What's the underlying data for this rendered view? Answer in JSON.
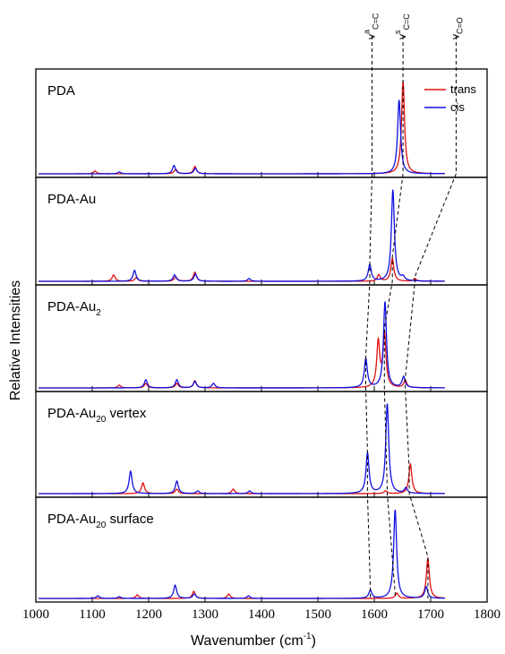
{
  "colors": {
    "trans": "#e01010",
    "cis": "#1010e0",
    "axis": "#000000",
    "guide": "#000000"
  },
  "chart_data": {
    "type": "line",
    "xlabel_main": "Wavenumber (cm",
    "xlabel_sup": "-1",
    "xlabel_end": ")",
    "ylabel": "Relative Intensities",
    "xlim": [
      1000,
      1800
    ],
    "xticks": [
      1000,
      1100,
      1200,
      1300,
      1400,
      1500,
      1600,
      1700,
      1800
    ],
    "xtick_labels": [
      "1000",
      "1100",
      "1200",
      "1300",
      "1400",
      "1500",
      "1600",
      "1700",
      "1800"
    ],
    "legend": {
      "position": "top-right",
      "entries": [
        "trans",
        "cis"
      ]
    },
    "annotations": [
      {
        "base": "v",
        "sup": "a",
        "sub": "C=C"
      },
      {
        "base": "v",
        "sup": "s",
        "sub": "C=C"
      },
      {
        "base": "v",
        "sup": "",
        "sub": "C=O"
      }
    ],
    "panels": [
      {
        "name": "PDA",
        "label_main": "PDA",
        "label_sub": "",
        "label_tail": "",
        "series": [
          {
            "name": "trans",
            "peaks": [
              [
                1105,
                0.03
              ],
              [
                1248,
                0.05
              ],
              [
                1282,
                0.08
              ],
              [
                1651,
                1.0
              ],
              [
                1747,
                0.04
              ]
            ]
          },
          {
            "name": "cis",
            "peaks": [
              [
                1148,
                0.02
              ],
              [
                1245,
                0.09
              ],
              [
                1283,
                0.06
              ],
              [
                1644,
                0.8
              ],
              [
                1740,
                0.08
              ]
            ]
          }
        ]
      },
      {
        "name": "PDA-Au",
        "label_main": "PDA-Au",
        "label_sub": "",
        "label_tail": "",
        "series": [
          {
            "name": "trans",
            "peaks": [
              [
                1138,
                0.07
              ],
              [
                1178,
                0.04
              ],
              [
                1248,
                0.05
              ],
              [
                1282,
                0.1
              ],
              [
                1608,
                0.07
              ],
              [
                1632,
                0.25
              ],
              [
                1672,
                0.03
              ]
            ]
          },
          {
            "name": "cis",
            "peaks": [
              [
                1175,
                0.12
              ],
              [
                1246,
                0.07
              ],
              [
                1283,
                0.08
              ],
              [
                1378,
                0.03
              ],
              [
                1592,
                0.18
              ],
              [
                1633,
                1.0
              ],
              [
                1651,
                0.04
              ]
            ]
          }
        ]
      },
      {
        "name": "PDA-Au2",
        "label_main": "PDA-Au",
        "label_sub": "2",
        "label_tail": "",
        "series": [
          {
            "name": "trans",
            "peaks": [
              [
                1148,
                0.03
              ],
              [
                1195,
                0.05
              ],
              [
                1250,
                0.05
              ],
              [
                1282,
                0.08
              ],
              [
                1607,
                0.5
              ],
              [
                1618,
                0.6
              ],
              [
                1655,
                0.08
              ]
            ]
          },
          {
            "name": "cis",
            "peaks": [
              [
                1195,
                0.09
              ],
              [
                1250,
                0.09
              ],
              [
                1282,
                0.07
              ],
              [
                1315,
                0.05
              ],
              [
                1585,
                0.32
              ],
              [
                1619,
                0.95
              ],
              [
                1652,
                0.12
              ]
            ]
          }
        ]
      },
      {
        "name": "PDA-Au20 vertex",
        "label_main": "PDA-Au",
        "label_sub": "20",
        "label_tail": " vertex",
        "series": [
          {
            "name": "trans",
            "peaks": [
              [
                1190,
                0.12
              ],
              [
                1250,
                0.05
              ],
              [
                1350,
                0.05
              ],
              [
                1620,
                0.03
              ],
              [
                1664,
                0.33
              ]
            ]
          },
          {
            "name": "cis",
            "peaks": [
              [
                1168,
                0.25
              ],
              [
                1250,
                0.14
              ],
              [
                1287,
                0.03
              ],
              [
                1379,
                0.03
              ],
              [
                1588,
                0.45
              ],
              [
                1623,
                1.0
              ],
              [
                1656,
                0.06
              ]
            ]
          }
        ]
      },
      {
        "name": "PDA-Au20 surface",
        "label_main": "PDA-Au",
        "label_sub": "20",
        "label_tail": " surface",
        "series": [
          {
            "name": "trans",
            "peaks": [
              [
                1180,
                0.04
              ],
              [
                1280,
                0.08
              ],
              [
                1342,
                0.05
              ],
              [
                1640,
                0.06
              ],
              [
                1695,
                0.45
              ]
            ]
          },
          {
            "name": "cis",
            "peaks": [
              [
                1110,
                0.03
              ],
              [
                1148,
                0.02
              ],
              [
                1247,
                0.15
              ],
              [
                1281,
                0.05
              ],
              [
                1377,
                0.03
              ],
              [
                1593,
                0.09
              ],
              [
                1637,
                1.0
              ],
              [
                1692,
                0.13
              ]
            ]
          }
        ]
      }
    ],
    "guides": [
      {
        "mode": "cis",
        "points": [
          1596,
          1592,
          1585,
          1588,
          1593
        ]
      },
      {
        "mode": "trans",
        "points": [
          1651,
          1632,
          1618,
          1623,
          1637
        ]
      },
      {
        "mode": "trans",
        "points": [
          1745,
          1672,
          1655,
          1662,
          1695
        ]
      }
    ]
  }
}
